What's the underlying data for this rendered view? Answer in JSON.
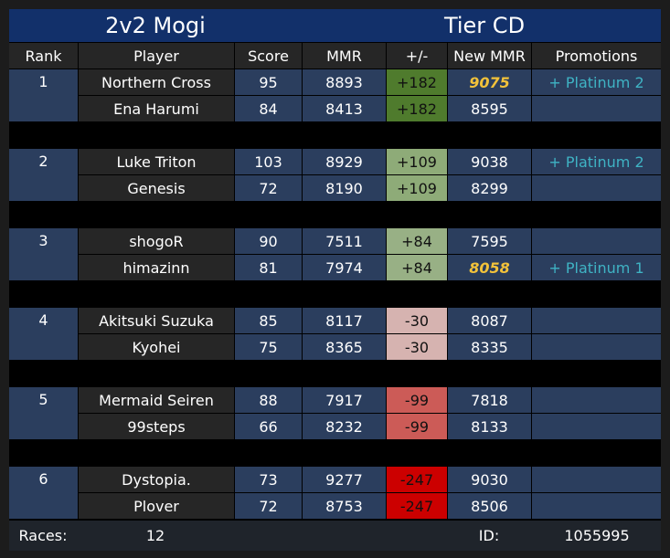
{
  "header": {
    "title": "2v2 Mogi",
    "tier": "Tier CD"
  },
  "columns": [
    "Rank",
    "Player",
    "Score",
    "MMR",
    "+/-",
    "New MMR",
    "Promotions"
  ],
  "teams": [
    {
      "rank": "1",
      "players": [
        {
          "name": "Northern Cross",
          "score": "95",
          "mmr": "8893",
          "delta": "+182",
          "delta_color": "#4f7b2d",
          "new_mmr": "9075",
          "highlight": true,
          "promotion": "+ Platinum 2"
        },
        {
          "name": "Ena Harumi",
          "score": "84",
          "mmr": "8413",
          "delta": "+182",
          "delta_color": "#4f7b2d",
          "new_mmr": "8595"
        }
      ]
    },
    {
      "rank": "2",
      "players": [
        {
          "name": "Luke Triton",
          "score": "103",
          "mmr": "8929",
          "delta": "+109",
          "delta_color": "#8eab78",
          "new_mmr": "9038",
          "promotion": "+ Platinum 2"
        },
        {
          "name": "Genesis",
          "score": "72",
          "mmr": "8190",
          "delta": "+109",
          "delta_color": "#8eab78",
          "new_mmr": "8299"
        }
      ]
    },
    {
      "rank": "3",
      "players": [
        {
          "name": "shogoR",
          "score": "90",
          "mmr": "7511",
          "delta": "+84",
          "delta_color": "#98b085",
          "new_mmr": "7595"
        },
        {
          "name": "himazinn",
          "score": "81",
          "mmr": "7974",
          "delta": "+84",
          "delta_color": "#98b085",
          "new_mmr": "8058",
          "highlight": true,
          "promotion": "+ Platinum 1"
        }
      ]
    },
    {
      "rank": "4",
      "players": [
        {
          "name": "Akitsuki Suzuka",
          "score": "85",
          "mmr": "8117",
          "delta": "-30",
          "delta_color": "#d6b3b0",
          "new_mmr": "8087"
        },
        {
          "name": "Kyohei",
          "score": "75",
          "mmr": "8365",
          "delta": "-30",
          "delta_color": "#d6b3b0",
          "new_mmr": "8335"
        }
      ]
    },
    {
      "rank": "5",
      "players": [
        {
          "name": "Mermaid Seiren",
          "score": "88",
          "mmr": "7917",
          "delta": "-99",
          "delta_color": "#cc5b57",
          "new_mmr": "7818"
        },
        {
          "name": "99steps",
          "score": "66",
          "mmr": "8232",
          "delta": "-99",
          "delta_color": "#cc5b57",
          "new_mmr": "8133"
        }
      ]
    },
    {
      "rank": "6",
      "players": [
        {
          "name": "Dystopia.",
          "score": "73",
          "mmr": "9277",
          "delta": "-247",
          "delta_color": "#cc0000",
          "new_mmr": "9030"
        },
        {
          "name": "Plover",
          "score": "72",
          "mmr": "8753",
          "delta": "-247",
          "delta_color": "#cc0000",
          "new_mmr": "8506"
        }
      ]
    }
  ],
  "footer": {
    "races_label": "Races:",
    "races": "12",
    "id_label": "ID:",
    "id": "1055995"
  }
}
